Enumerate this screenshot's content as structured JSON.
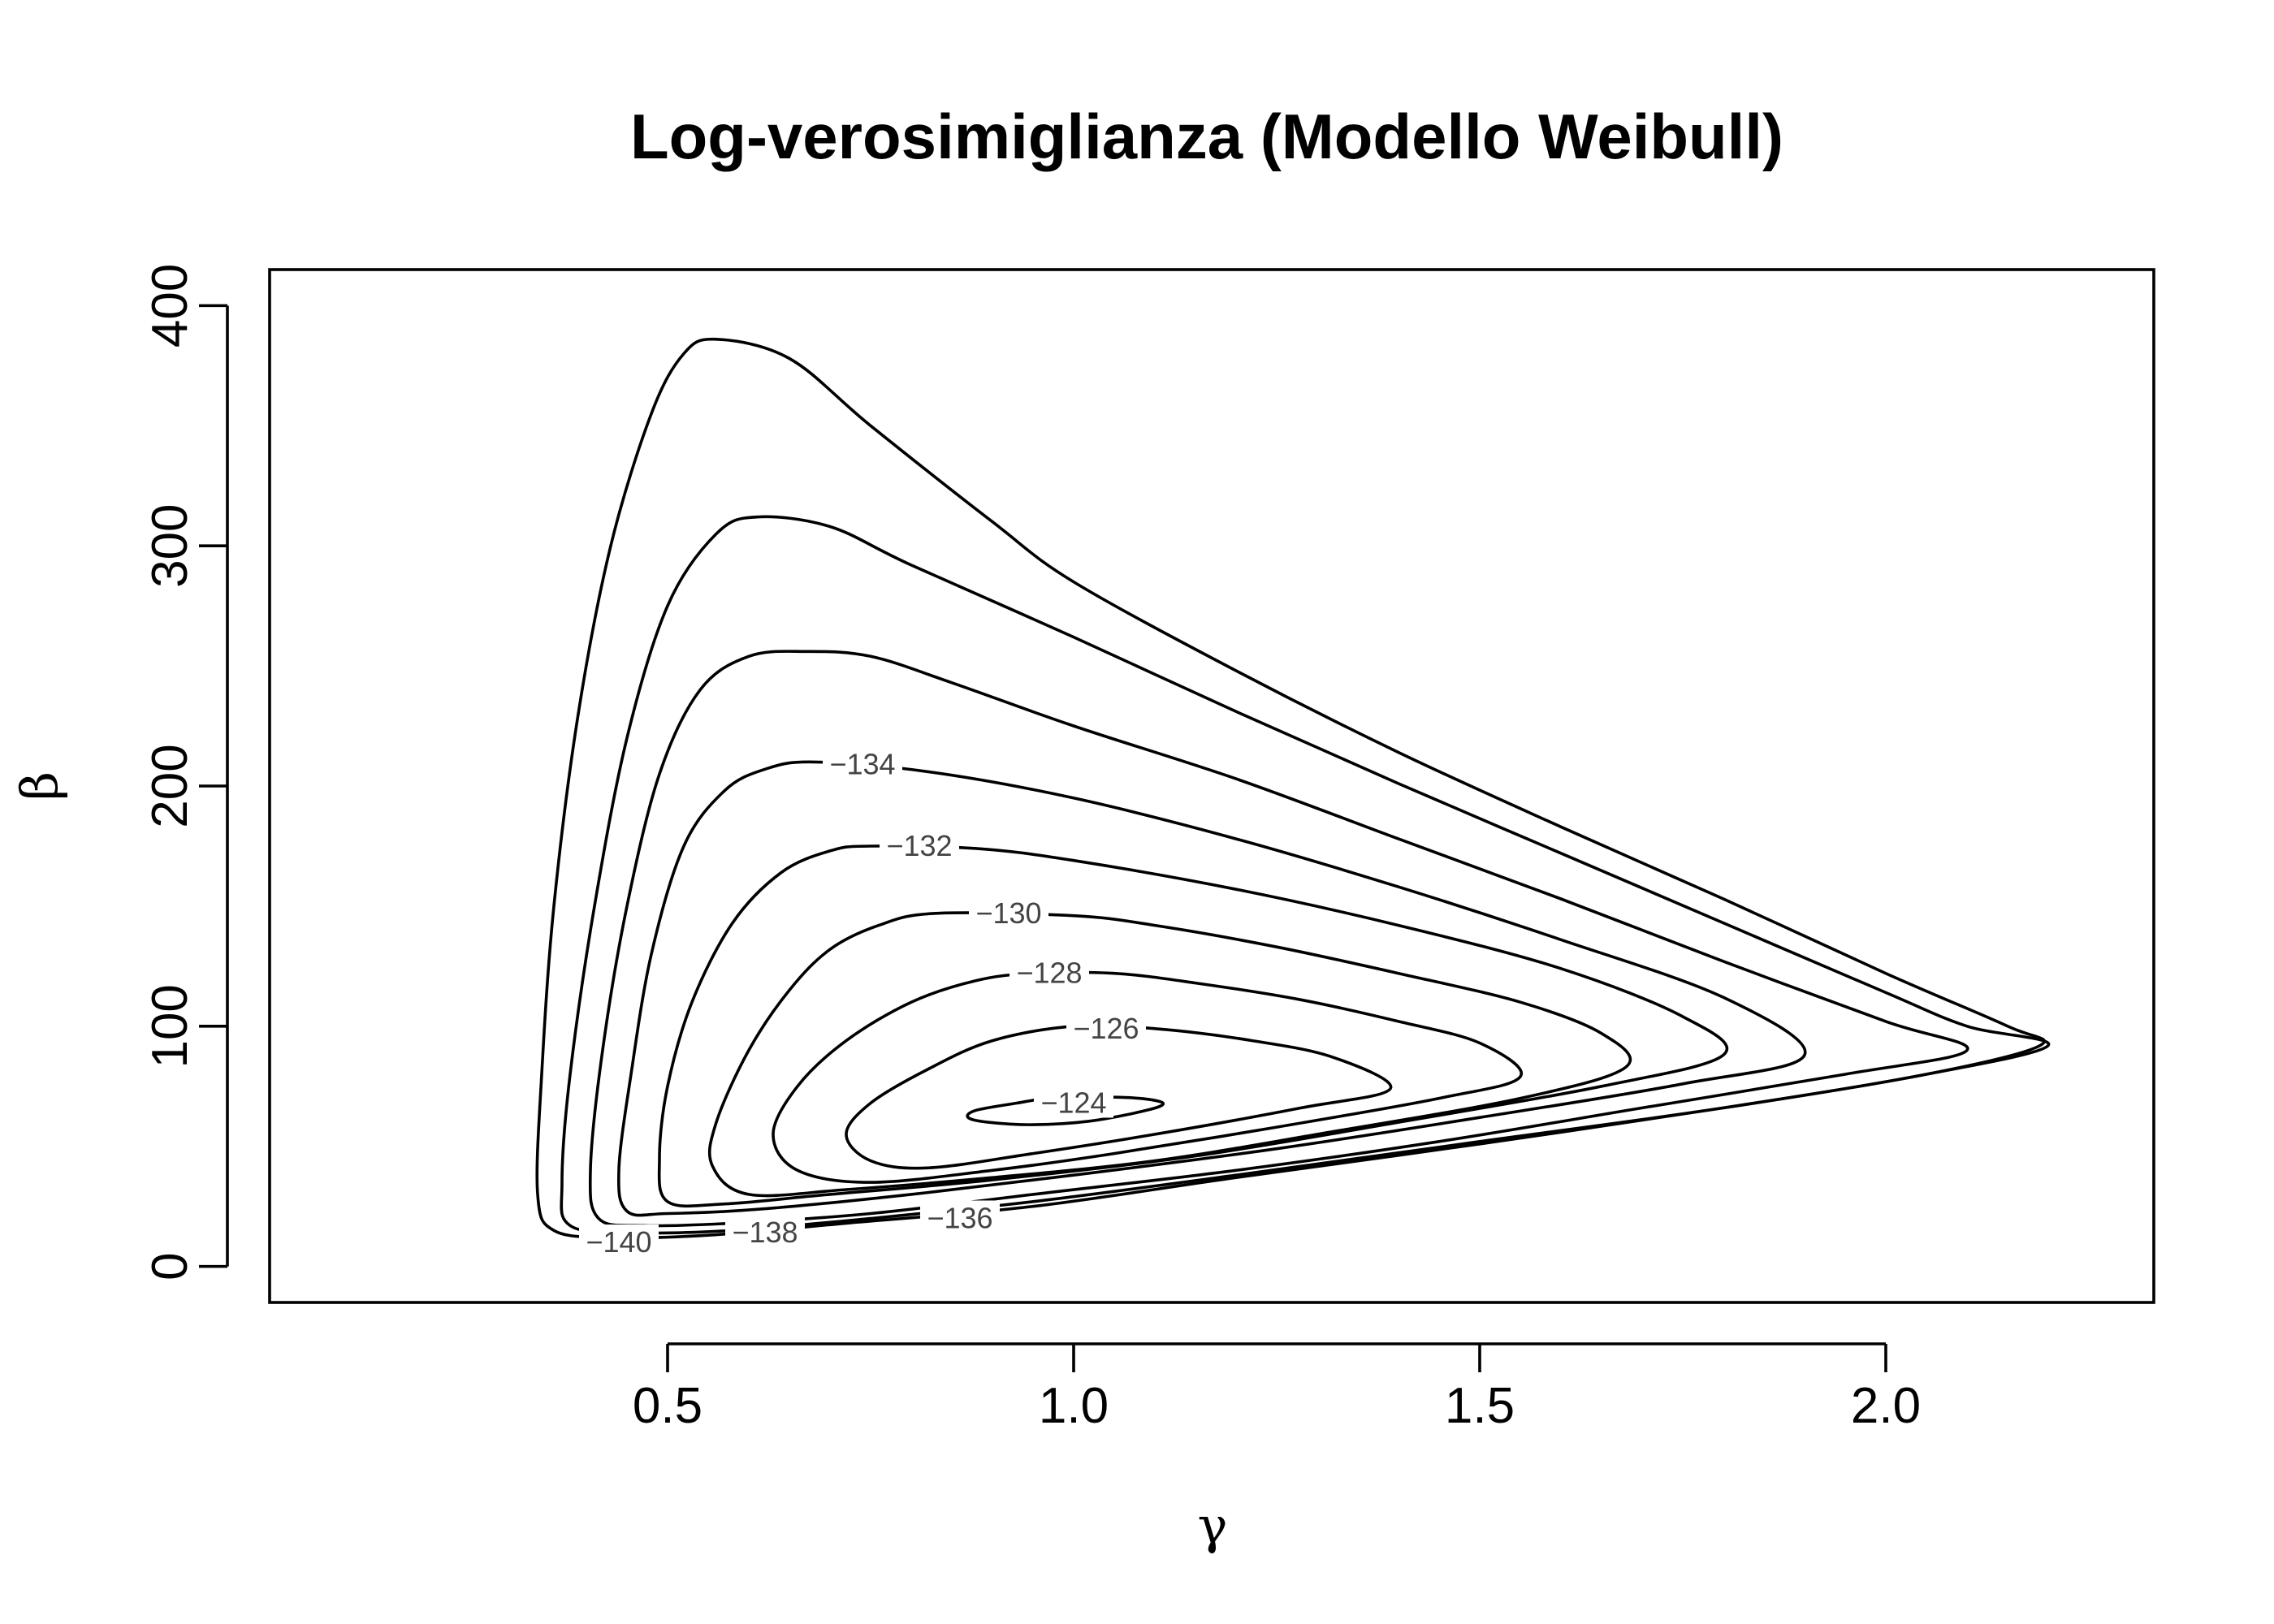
{
  "chart_data": {
    "type": "contour",
    "title": "Log-verosimiglianza (Modello Weibull)",
    "xlabel": "γ",
    "ylabel": "β",
    "xlim": [
      0.01,
      2.33
    ],
    "ylim": [
      -15,
      415
    ],
    "x_ticks": [
      {
        "value": 0.5,
        "label": "0.5"
      },
      {
        "value": 1.0,
        "label": "1.0"
      },
      {
        "value": 1.5,
        "label": "1.5"
      },
      {
        "value": 2.0,
        "label": "2.0"
      }
    ],
    "y_ticks": [
      {
        "value": 0,
        "label": "0"
      },
      {
        "value": 100,
        "label": "100"
      },
      {
        "value": 200,
        "label": "200"
      },
      {
        "value": 300,
        "label": "300"
      },
      {
        "value": 400,
        "label": "400"
      }
    ],
    "grid": false,
    "contours": [
      {
        "level": -124,
        "label": "−124",
        "label_at": [
          1.0,
          68
        ],
        "points": [
          [
            0.97,
            70
          ],
          [
            1.03,
            70.5
          ],
          [
            1.08,
            70
          ],
          [
            1.11,
            68
          ],
          [
            1.09,
            65
          ],
          [
            1.02,
            60.5
          ],
          [
            0.95,
            59
          ],
          [
            0.895,
            60
          ],
          [
            0.87,
            62
          ],
          [
            0.88,
            65
          ],
          [
            0.93,
            68
          ],
          [
            0.97,
            70
          ]
        ]
      },
      {
        "level": -126,
        "label": "−126",
        "label_at": [
          1.04,
          99
        ],
        "points": [
          [
            1.0,
            100
          ],
          [
            1.1,
            99
          ],
          [
            1.22,
            94
          ],
          [
            1.32,
            87
          ],
          [
            1.39,
            74
          ],
          [
            1.28,
            66
          ],
          [
            1.1,
            55
          ],
          [
            0.95,
            47
          ],
          [
            0.82,
            41
          ],
          [
            0.75,
            44
          ],
          [
            0.72,
            55
          ],
          [
            0.75,
            68
          ],
          [
            0.82,
            82
          ],
          [
            0.9,
            94
          ],
          [
            1.0,
            100
          ]
        ]
      },
      {
        "level": -128,
        "label": "−128",
        "label_at": [
          0.97,
          122
        ],
        "points": [
          [
            1.05,
            122
          ],
          [
            1.15,
            118
          ],
          [
            1.28,
            111
          ],
          [
            1.4,
            102
          ],
          [
            1.5,
            93
          ],
          [
            1.55,
            79
          ],
          [
            1.45,
            70
          ],
          [
            1.25,
            58
          ],
          [
            1.05,
            47
          ],
          [
            0.9,
            40
          ],
          [
            0.75,
            35
          ],
          [
            0.66,
            40
          ],
          [
            0.63,
            55
          ],
          [
            0.66,
            75
          ],
          [
            0.72,
            94
          ],
          [
            0.8,
            110
          ],
          [
            0.88,
            119
          ],
          [
            0.95,
            122
          ],
          [
            1.05,
            122
          ]
        ]
      },
      {
        "level": -130,
        "label": "−130",
        "label_at": [
          0.92,
          147
        ],
        "points": [
          [
            1.0,
            146
          ],
          [
            1.1,
            142
          ],
          [
            1.25,
            133
          ],
          [
            1.4,
            122
          ],
          [
            1.55,
            110
          ],
          [
            1.65,
            97
          ],
          [
            1.68,
            83
          ],
          [
            1.55,
            70
          ],
          [
            1.3,
            55
          ],
          [
            1.1,
            44
          ],
          [
            0.9,
            37
          ],
          [
            0.72,
            32
          ],
          [
            0.6,
            30
          ],
          [
            0.555,
            42
          ],
          [
            0.56,
            60
          ],
          [
            0.6,
            90
          ],
          [
            0.65,
            115
          ],
          [
            0.7,
            132
          ],
          [
            0.76,
            142
          ],
          [
            0.83,
            147
          ],
          [
            1.0,
            146
          ]
        ]
      },
      {
        "level": -132,
        "label": "−132",
        "label_at": [
          0.81,
          175
        ],
        "points": [
          [
            0.88,
            174
          ],
          [
            1.0,
            169
          ],
          [
            1.2,
            157
          ],
          [
            1.4,
            142
          ],
          [
            1.6,
            124
          ],
          [
            1.75,
            104
          ],
          [
            1.8,
            88
          ],
          [
            1.65,
            75
          ],
          [
            1.4,
            60
          ],
          [
            1.15,
            46
          ],
          [
            0.9,
            36
          ],
          [
            0.7,
            30
          ],
          [
            0.57,
            26
          ],
          [
            0.5,
            27
          ],
          [
            0.49,
            45
          ],
          [
            0.5,
            75
          ],
          [
            0.53,
            110
          ],
          [
            0.58,
            143
          ],
          [
            0.64,
            164
          ],
          [
            0.7,
            173
          ],
          [
            0.75,
            175
          ],
          [
            0.88,
            174
          ]
        ]
      },
      {
        "level": -134,
        "label": "−134",
        "label_at": [
          0.74,
          209
        ],
        "points": [
          [
            0.82,
            206
          ],
          [
            1.0,
            195
          ],
          [
            1.2,
            178
          ],
          [
            1.4,
            158
          ],
          [
            1.6,
            136
          ],
          [
            1.8,
            112
          ],
          [
            1.9,
            88
          ],
          [
            1.75,
            76
          ],
          [
            1.5,
            62
          ],
          [
            1.25,
            49
          ],
          [
            1.0,
            38
          ],
          [
            0.8,
            30
          ],
          [
            0.62,
            24
          ],
          [
            0.5,
            22
          ],
          [
            0.45,
            23
          ],
          [
            0.44,
            40
          ],
          [
            0.455,
            80
          ],
          [
            0.48,
            130
          ],
          [
            0.52,
            175
          ],
          [
            0.57,
            198
          ],
          [
            0.62,
            207
          ],
          [
            0.68,
            210
          ],
          [
            0.82,
            206
          ]
        ]
      },
      {
        "level": -136,
        "label": "−136",
        "label_at": [
          0.86,
          20
        ],
        "points": [
          [
            0.67,
            256
          ],
          [
            0.75,
            254
          ],
          [
            0.85,
            243
          ],
          [
            1.0,
            225
          ],
          [
            1.2,
            203
          ],
          [
            1.4,
            178
          ],
          [
            1.6,
            153
          ],
          [
            1.8,
            127
          ],
          [
            2.0,
            102
          ],
          [
            2.1,
            90
          ],
          [
            1.95,
            80
          ],
          [
            1.7,
            66
          ],
          [
            1.45,
            52
          ],
          [
            1.2,
            40
          ],
          [
            0.95,
            30
          ],
          [
            0.75,
            22
          ],
          [
            0.58,
            18
          ],
          [
            0.47,
            17
          ],
          [
            0.415,
            20
          ],
          [
            0.405,
            40
          ],
          [
            0.42,
            90
          ],
          [
            0.45,
            150
          ],
          [
            0.49,
            205
          ],
          [
            0.54,
            240
          ],
          [
            0.6,
            254
          ],
          [
            0.67,
            256
          ]
        ]
      },
      {
        "level": -138,
        "label": "−138",
        "label_at": [
          0.62,
          14
        ],
        "points": [
          [
            0.61,
            312
          ],
          [
            0.7,
            308
          ],
          [
            0.8,
            292
          ],
          [
            1.0,
            262
          ],
          [
            1.2,
            231
          ],
          [
            1.4,
            201
          ],
          [
            1.6,
            172
          ],
          [
            1.8,
            143
          ],
          [
            2.0,
            114
          ],
          [
            2.1,
            100
          ],
          [
            2.2,
            92
          ],
          [
            2.05,
            80
          ],
          [
            1.8,
            66
          ],
          [
            1.5,
            52
          ],
          [
            1.2,
            38
          ],
          [
            0.95,
            27
          ],
          [
            0.75,
            20
          ],
          [
            0.58,
            15
          ],
          [
            0.46,
            14
          ],
          [
            0.38,
            17
          ],
          [
            0.37,
            35
          ],
          [
            0.38,
            80
          ],
          [
            0.41,
            150
          ],
          [
            0.45,
            220
          ],
          [
            0.5,
            275
          ],
          [
            0.56,
            305
          ],
          [
            0.61,
            312
          ]
        ]
      },
      {
        "level": -140,
        "label": "−140",
        "label_at": [
          0.44,
          10
        ],
        "points": [
          [
            0.56,
            386
          ],
          [
            0.65,
            378
          ],
          [
            0.75,
            350
          ],
          [
            0.9,
            310
          ],
          [
            1.0,
            285
          ],
          [
            1.2,
            248
          ],
          [
            1.4,
            214
          ],
          [
            1.6,
            183
          ],
          [
            1.8,
            153
          ],
          [
            2.0,
            122
          ],
          [
            2.15,
            100
          ],
          [
            2.19,
            92
          ],
          [
            2.05,
            80
          ],
          [
            1.8,
            66
          ],
          [
            1.5,
            51
          ],
          [
            1.2,
            37
          ],
          [
            0.95,
            25
          ],
          [
            0.72,
            18
          ],
          [
            0.55,
            13
          ],
          [
            0.43,
            12
          ],
          [
            0.36,
            15
          ],
          [
            0.34,
            30
          ],
          [
            0.345,
            80
          ],
          [
            0.36,
            150
          ],
          [
            0.39,
            230
          ],
          [
            0.43,
            300
          ],
          [
            0.48,
            355
          ],
          [
            0.52,
            380
          ],
          [
            0.56,
            386
          ]
        ]
      }
    ]
  }
}
